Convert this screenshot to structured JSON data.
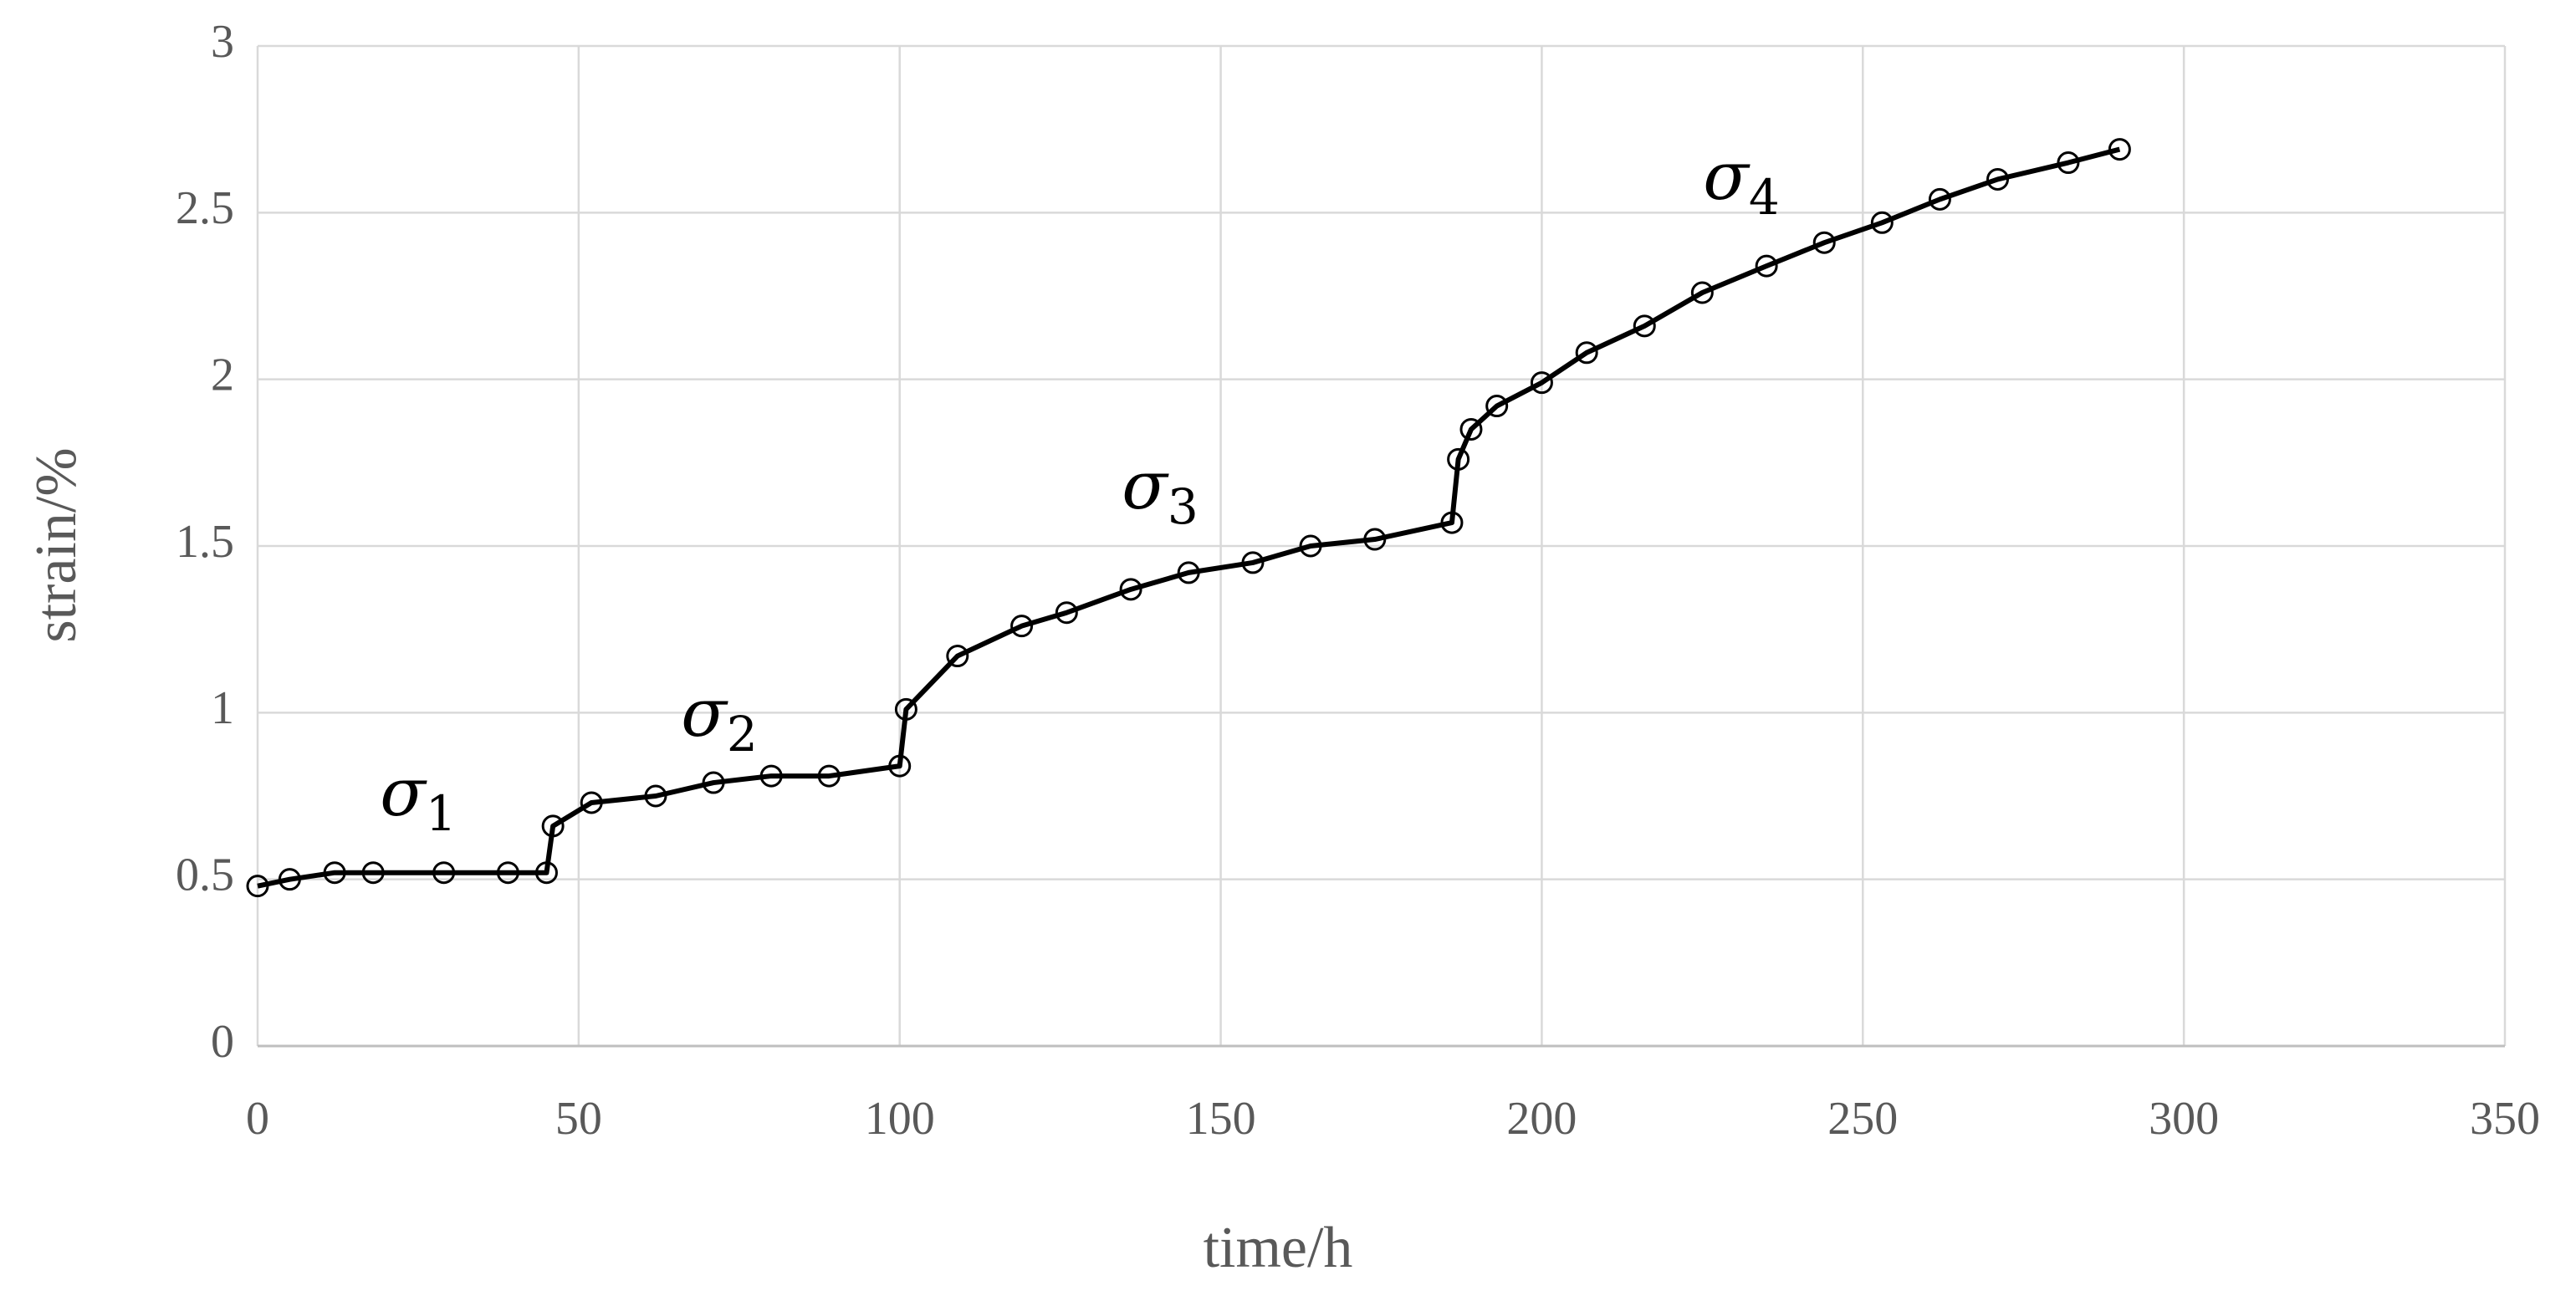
{
  "chart_data": {
    "type": "line",
    "x_label": "time/h",
    "y_label": "strain/%",
    "xlim": [
      0,
      350
    ],
    "xticks": [
      0,
      50,
      100,
      150,
      200,
      250,
      300,
      350
    ],
    "ylim": [
      0,
      3
    ],
    "yticks": [
      0,
      0.5,
      1,
      1.5,
      2,
      2.5,
      3
    ],
    "grid": true,
    "x": [
      0,
      5,
      12,
      18,
      29,
      39,
      45,
      46,
      52,
      62,
      71,
      80,
      89,
      100,
      101,
      109,
      119,
      126,
      136,
      145,
      155,
      164,
      174,
      186,
      187,
      189,
      193,
      200,
      207,
      216,
      225,
      235,
      244,
      253,
      262,
      271,
      282,
      290
    ],
    "series": [
      {
        "color": "#000000",
        "marker": "circle",
        "values": [
          0.48,
          0.5,
          0.52,
          0.52,
          0.52,
          0.52,
          0.52,
          0.66,
          0.73,
          0.75,
          0.79,
          0.81,
          0.81,
          0.84,
          1.01,
          1.17,
          1.26,
          1.3,
          1.37,
          1.42,
          1.45,
          1.5,
          1.52,
          1.57,
          1.76,
          1.85,
          1.92,
          1.99,
          2.08,
          2.16,
          2.26,
          2.34,
          2.41,
          2.47,
          2.54,
          2.6,
          2.65,
          2.69
        ]
      }
    ],
    "annotations": [
      {
        "text": "σ",
        "sub": "1"
      },
      {
        "text": "σ",
        "sub": "2"
      },
      {
        "text": "σ",
        "sub": "3"
      },
      {
        "text": "σ",
        "sub": "4"
      }
    ]
  }
}
